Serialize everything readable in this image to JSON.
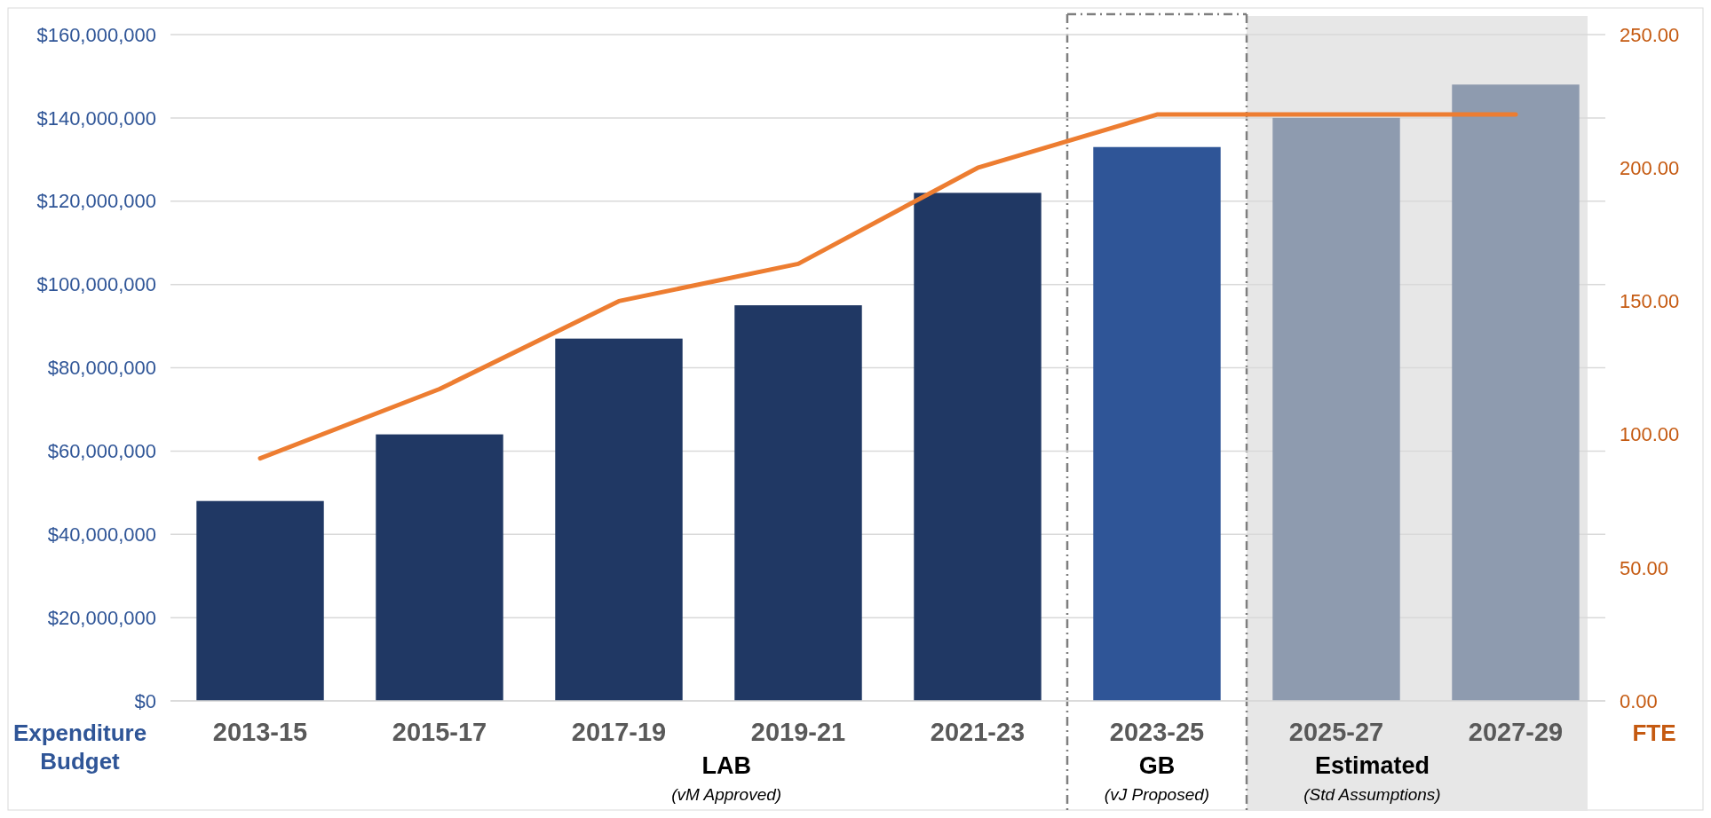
{
  "chart_data": {
    "type": "bar",
    "categories": [
      "2013-15",
      "2015-17",
      "2017-19",
      "2019-21",
      "2021-23",
      "2023-25",
      "2025-27",
      "2027-29"
    ],
    "series": [
      {
        "values": [
          48000000,
          64000000,
          87000000,
          95000000,
          122000000,
          133000000,
          140000000,
          148000000
        ],
        "colors": [
          "#203864",
          "#203864",
          "#203864",
          "#203864",
          "#203864",
          "#2f5597",
          "#8e9baf",
          "#8e9baf"
        ]
      },
      {
        "type": "line",
        "axis": "y2",
        "color": "#ed7d31",
        "values": [
          91,
          117,
          150,
          164,
          200,
          220,
          220,
          220
        ]
      }
    ],
    "ylabel": "Expenditure Budget",
    "y2label": "FTE",
    "ylim": [
      0,
      160000000
    ],
    "yticks": [
      {
        "value": 0,
        "label": "$0"
      },
      {
        "value": 20000000,
        "label": "$20,000,000"
      },
      {
        "value": 40000000,
        "label": "$40,000,000"
      },
      {
        "value": 60000000,
        "label": "$60,000,000"
      },
      {
        "value": 80000000,
        "label": "$80,000,000"
      },
      {
        "value": 100000000,
        "label": "$100,000,000"
      },
      {
        "value": 120000000,
        "label": "$120,000,000"
      },
      {
        "value": 140000000,
        "label": "$140,000,000"
      },
      {
        "value": 160000000,
        "label": "$160,000,000"
      }
    ],
    "y2lim": [
      0,
      250
    ],
    "y2ticks": [
      {
        "value": 0,
        "label": "0.00"
      },
      {
        "value": 50,
        "label": "50.00"
      },
      {
        "value": 100,
        "label": "100.00"
      },
      {
        "value": 150,
        "label": "150.00"
      },
      {
        "value": 200,
        "label": "200.00"
      },
      {
        "value": 250,
        "label": "250.00"
      }
    ],
    "grid": "y",
    "marker": "none",
    "line_style": "solid",
    "bands": [
      {
        "axis": "x",
        "from": "2025-27",
        "to": "2027-29",
        "label": "Estimated",
        "color": "#e7e7e7"
      }
    ],
    "annotations": [
      "LAB",
      "(vM Approved)",
      "GB",
      "(vJ Proposed)",
      "(Std Assumptions)"
    ]
  }
}
